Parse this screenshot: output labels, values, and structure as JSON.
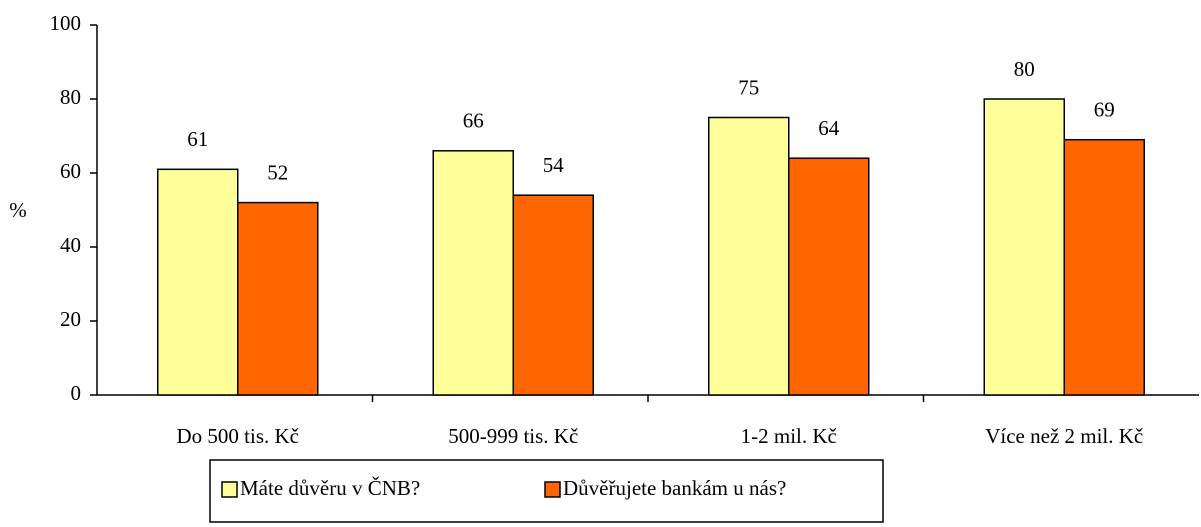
{
  "chart_data": {
    "type": "bar",
    "ylabel": "%",
    "categories": [
      "Do 500 tis. Kč",
      "500-999 tis. Kč",
      "1-2 mil. Kč",
      "Více než 2 mil. Kč"
    ],
    "series": [
      {
        "name": "Máte důvěru v ČNB?",
        "color": "#ffff99",
        "values": [
          61,
          66,
          75,
          80
        ]
      },
      {
        "name": "Důvěřujete bankám u nás?",
        "color": "#ff6600",
        "values": [
          52,
          54,
          64,
          69
        ]
      }
    ],
    "ylim": [
      0,
      100
    ],
    "yticks": [
      0,
      20,
      40,
      60,
      80,
      100
    ],
    "grid": false,
    "legend": "bottom"
  }
}
